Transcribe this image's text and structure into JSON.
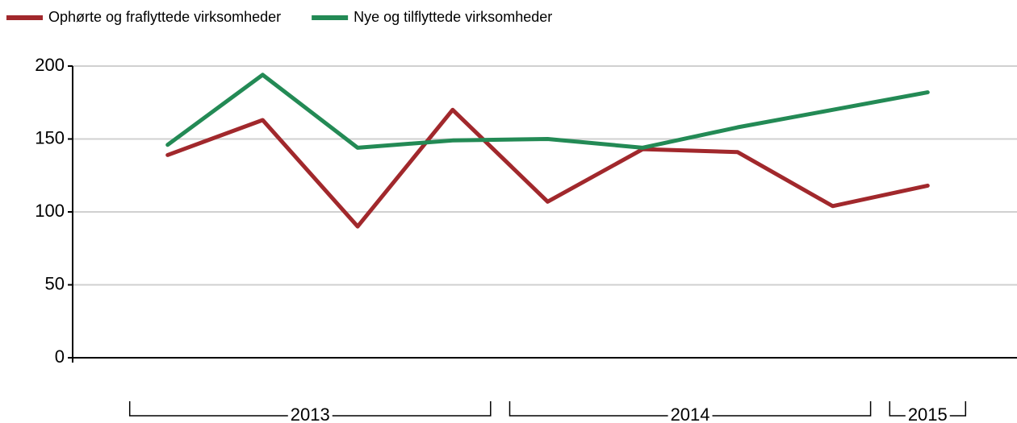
{
  "chart_data": {
    "type": "line",
    "categories": [
      null,
      null,
      null,
      null,
      null,
      null,
      null,
      null,
      null
    ],
    "x_groups": [
      {
        "label": "2013",
        "span": 4
      },
      {
        "label": "2014",
        "span": 4
      },
      {
        "label": "2015",
        "span": 1
      }
    ],
    "series": [
      {
        "name": "Ophørte og fraflyttede virksomheder",
        "color": "#a1282c",
        "values": [
          139,
          163,
          90,
          170,
          107,
          143,
          141,
          104,
          118
        ]
      },
      {
        "name": "Nye og tilflyttede virksomheder",
        "color": "#238a55",
        "values": [
          146,
          194,
          144,
          149,
          150,
          144,
          158,
          170,
          182
        ]
      }
    ],
    "ylim": [
      0,
      200
    ],
    "yticks": [
      0,
      50,
      100,
      150,
      200
    ],
    "grid": true,
    "legend": "top-left"
  }
}
